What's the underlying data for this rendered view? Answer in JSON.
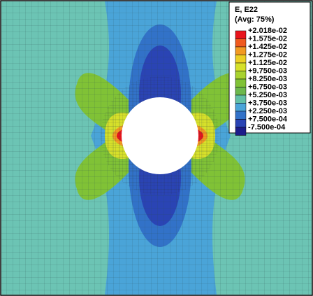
{
  "legend": {
    "title": "E, E22",
    "subtitle": "(Avg: 75%)",
    "labels": [
      "+2.018e-02",
      "+1.575e-02",
      "+1.425e-02",
      "+1.275e-02",
      "+1.125e-02",
      "+9.750e-03",
      "+8.250e-03",
      "+6.750e-03",
      "+5.250e-03",
      "+3.750e-03",
      "+2.250e-03",
      "+7.500e-04",
      "-7.500e-04"
    ],
    "colors": [
      "#e8141c",
      "#f05a1e",
      "#f29a22",
      "#eccf24",
      "#d6e02a",
      "#a8d22e",
      "#80c236",
      "#6cb84c",
      "#62c0a6",
      "#4aa4d8",
      "#3272c8",
      "#2a44b4",
      "#1c1c8a"
    ]
  }
}
